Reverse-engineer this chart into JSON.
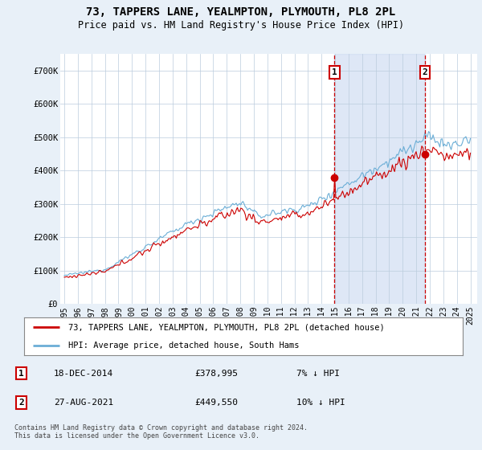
{
  "title": "73, TAPPERS LANE, YEALMPTON, PLYMOUTH, PL8 2PL",
  "subtitle": "Price paid vs. HM Land Registry's House Price Index (HPI)",
  "legend_line1": "73, TAPPERS LANE, YEALMPTON, PLYMOUTH, PL8 2PL (detached house)",
  "legend_line2": "HPI: Average price, detached house, South Hams",
  "annotation1_date": "18-DEC-2014",
  "annotation1_price": "£378,995",
  "annotation1_hpi": "7% ↓ HPI",
  "annotation2_date": "27-AUG-2021",
  "annotation2_price": "£449,550",
  "annotation2_hpi": "10% ↓ HPI",
  "footnote": "Contains HM Land Registry data © Crown copyright and database right 2024.\nThis data is licensed under the Open Government Licence v3.0.",
  "hpi_color": "#6baed6",
  "price_color": "#cc0000",
  "annotation_color": "#cc0000",
  "background_color": "#e8f0f8",
  "plot_bg_color": "#ffffff",
  "shade_color": "#c8d8f0",
  "ylim": [
    0,
    750000
  ],
  "yticks": [
    0,
    100000,
    200000,
    300000,
    400000,
    500000,
    600000,
    700000
  ],
  "ytick_labels": [
    "£0",
    "£100K",
    "£200K",
    "£300K",
    "£400K",
    "£500K",
    "£600K",
    "£700K"
  ],
  "sale1_x": 2014.96,
  "sale1_y": 378995,
  "sale2_x": 2021.65,
  "sale2_y": 449550,
  "xmin": 1995,
  "xmax": 2025
}
